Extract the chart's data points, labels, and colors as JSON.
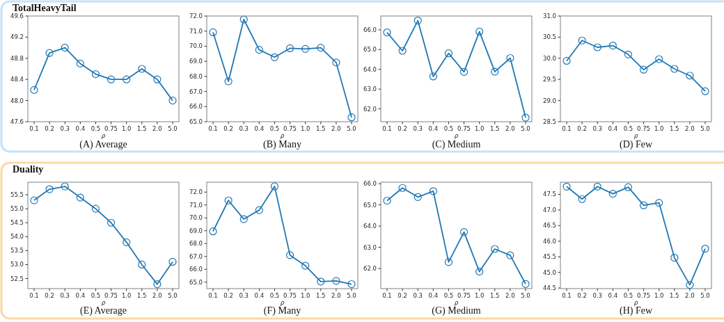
{
  "chart_data": [
    {
      "type": "line",
      "title": "(A) Average",
      "annotations": [
        "TotalHeavyTail"
      ],
      "xlabel": "ρ",
      "categories": [
        "0.1",
        "0.2",
        "0.3",
        "0.4",
        "0.5",
        "0.75",
        "1.0",
        "1.5",
        "2.0",
        "5.0"
      ],
      "ylim": [
        47.6,
        49.6
      ],
      "yticks": [
        {
          "value": 47.6,
          "label": "47.6"
        },
        {
          "value": 48.0,
          "label": "48.0"
        },
        {
          "value": 48.4,
          "label": "48.4"
        },
        {
          "value": 48.8,
          "label": "48.8"
        },
        {
          "value": 49.2,
          "label": "49.2"
        },
        {
          "value": 49.6,
          "label": "49.6"
        }
      ],
      "marker": "circle",
      "series": [
        {
          "color": "#1f77b4",
          "values": [
            48.2,
            48.9,
            49.0,
            48.7,
            48.5,
            48.4,
            48.4,
            48.6,
            48.4,
            48.0
          ]
        }
      ]
    },
    {
      "type": "line",
      "title": "(B) Many",
      "xlabel": "ρ",
      "categories": [
        "0.1",
        "0.2",
        "0.3",
        "0.4",
        "0.5",
        "0.75",
        "1.0",
        "1.5",
        "2.0",
        "5.0"
      ],
      "ylim": [
        65,
        72
      ],
      "yticks": [
        {
          "value": 65,
          "label": "65.0"
        },
        {
          "value": 66,
          "label": "66.0"
        },
        {
          "value": 67,
          "label": "67.0"
        },
        {
          "value": 68,
          "label": "68.0"
        },
        {
          "value": 69,
          "label": "69.0"
        },
        {
          "value": 70,
          "label": "70.0"
        },
        {
          "value": 71,
          "label": "71.0"
        },
        {
          "value": 72,
          "label": "72.0"
        }
      ],
      "marker": "circle",
      "series": [
        {
          "color": "#1f77b4",
          "values": [
            70.92,
            67.67,
            71.77,
            69.76,
            69.27,
            69.86,
            69.82,
            69.9,
            68.92,
            65.29
          ]
        }
      ]
    },
    {
      "type": "line",
      "title": "(C) Medium",
      "xlabel": "ρ",
      "categories": [
        "0.1",
        "0.2",
        "0.3",
        "0.4",
        "0.5",
        "0.75",
        "1.0",
        "1.5",
        "2.0",
        "5.0"
      ],
      "ylim": [
        61.35,
        66.7
      ],
      "yticks": [
        {
          "value": 62,
          "label": "62.0"
        },
        {
          "value": 63,
          "label": "63.0"
        },
        {
          "value": 64,
          "label": "64.0"
        },
        {
          "value": 65,
          "label": "65.0"
        },
        {
          "value": 66,
          "label": "66.0"
        }
      ],
      "marker": "circle",
      "series": [
        {
          "color": "#1f77b4",
          "values": [
            65.87,
            64.94,
            66.47,
            63.64,
            64.81,
            63.87,
            65.91,
            63.88,
            64.57,
            61.56
          ]
        }
      ]
    },
    {
      "type": "line",
      "title": "(D) Few",
      "xlabel": "ρ",
      "categories": [
        "0.1",
        "0.2",
        "0.3",
        "0.4",
        "0.5",
        "0.75",
        "1.0",
        "1.5",
        "2.0",
        "5.0"
      ],
      "ylim": [
        28.5,
        31
      ],
      "yticks": [
        {
          "value": 28.5,
          "label": "28.5"
        },
        {
          "value": 29,
          "label": "29.0"
        },
        {
          "value": 29.5,
          "label": "29.5"
        },
        {
          "value": 30,
          "label": "30.0"
        },
        {
          "value": 30.5,
          "label": "30.5"
        },
        {
          "value": 31,
          "label": "31.0"
        }
      ],
      "marker": "circle",
      "series": [
        {
          "color": "#1f77b4",
          "values": [
            29.94,
            30.42,
            30.26,
            30.3,
            30.09,
            29.73,
            29.98,
            29.75,
            29.59,
            29.22
          ]
        }
      ]
    },
    {
      "type": "line",
      "title": "(E) Average",
      "annotations": [
        "Duality"
      ],
      "xlabel": "ρ",
      "categories": [
        "0.1",
        "0.2",
        "0.3",
        "0.4",
        "0.5",
        "0.75",
        "1.0",
        "1.5",
        "2.0",
        "5.0"
      ],
      "ylim": [
        52.14,
        55.95
      ],
      "yticks": [
        {
          "value": 52.5,
          "label": "52.5"
        },
        {
          "value": 53,
          "label": "53.0"
        },
        {
          "value": 53.5,
          "label": "53.5"
        },
        {
          "value": 54,
          "label": "54.0"
        },
        {
          "value": 54.5,
          "label": "54.5"
        },
        {
          "value": 55,
          "label": "55.0"
        },
        {
          "value": 55.5,
          "label": "55.5"
        }
      ],
      "marker": "circle",
      "series": [
        {
          "color": "#1f77b4",
          "values": [
            55.3,
            55.7,
            55.8,
            55.4,
            55.0,
            54.5,
            53.8,
            53.0,
            52.3,
            53.1
          ]
        }
      ]
    },
    {
      "type": "line",
      "title": "(F) Many",
      "xlabel": "ρ",
      "categories": [
        "0.1",
        "0.2",
        "0.3",
        "0.4",
        "0.5",
        "0.75",
        "1.0",
        "1.5",
        "2.0",
        "5.0"
      ],
      "ylim": [
        64.5,
        72.77
      ],
      "yticks": [
        {
          "value": 65,
          "label": "65.0"
        },
        {
          "value": 66,
          "label": "66.0"
        },
        {
          "value": 67,
          "label": "67.0"
        },
        {
          "value": 68,
          "label": "68.0"
        },
        {
          "value": 69,
          "label": "69.0"
        },
        {
          "value": 70,
          "label": "70.0"
        },
        {
          "value": 71,
          "label": "71.0"
        },
        {
          "value": 72,
          "label": "72.0"
        }
      ],
      "marker": "circle",
      "series": [
        {
          "color": "#1f77b4",
          "values": [
            68.95,
            71.35,
            69.9,
            70.6,
            72.45,
            67.1,
            66.28,
            65.05,
            65.1,
            64.85
          ]
        }
      ]
    },
    {
      "type": "line",
      "title": "(G) Medium",
      "xlabel": "ρ",
      "categories": [
        "0.1",
        "0.2",
        "0.3",
        "0.4",
        "0.5",
        "0.75",
        "1.0",
        "1.5",
        "2.0",
        "5.0"
      ],
      "ylim": [
        61.05,
        66.07
      ],
      "yticks": [
        {
          "value": 62,
          "label": "62.0"
        },
        {
          "value": 63,
          "label": "63.0"
        },
        {
          "value": 64,
          "label": "64.0"
        },
        {
          "value": 65,
          "label": "65.0"
        },
        {
          "value": 66,
          "label": "66.0"
        }
      ],
      "marker": "circle",
      "series": [
        {
          "color": "#1f77b4",
          "values": [
            65.2,
            65.8,
            65.37,
            65.65,
            62.3,
            63.72,
            61.85,
            62.92,
            62.62,
            61.27
          ]
        }
      ]
    },
    {
      "type": "line",
      "title": "(H) Few",
      "xlabel": "ρ",
      "categories": [
        "0.1",
        "0.2",
        "0.3",
        "0.4",
        "0.5",
        "0.75",
        "1.0",
        "1.5",
        "2.0",
        "5.0"
      ],
      "ylim": [
        44.48,
        47.89
      ],
      "yticks": [
        {
          "value": 44.5,
          "label": "44.5"
        },
        {
          "value": 45,
          "label": "45.0"
        },
        {
          "value": 45.5,
          "label": "45.5"
        },
        {
          "value": 46,
          "label": "46.0"
        },
        {
          "value": 46.5,
          "label": "46.5"
        },
        {
          "value": 47,
          "label": "47.0"
        },
        {
          "value": 47.5,
          "label": "47.5"
        }
      ],
      "marker": "circle",
      "series": [
        {
          "color": "#1f77b4",
          "values": [
            47.75,
            47.35,
            47.75,
            47.52,
            47.73,
            47.15,
            47.23,
            45.47,
            44.6,
            45.76
          ]
        }
      ]
    }
  ]
}
